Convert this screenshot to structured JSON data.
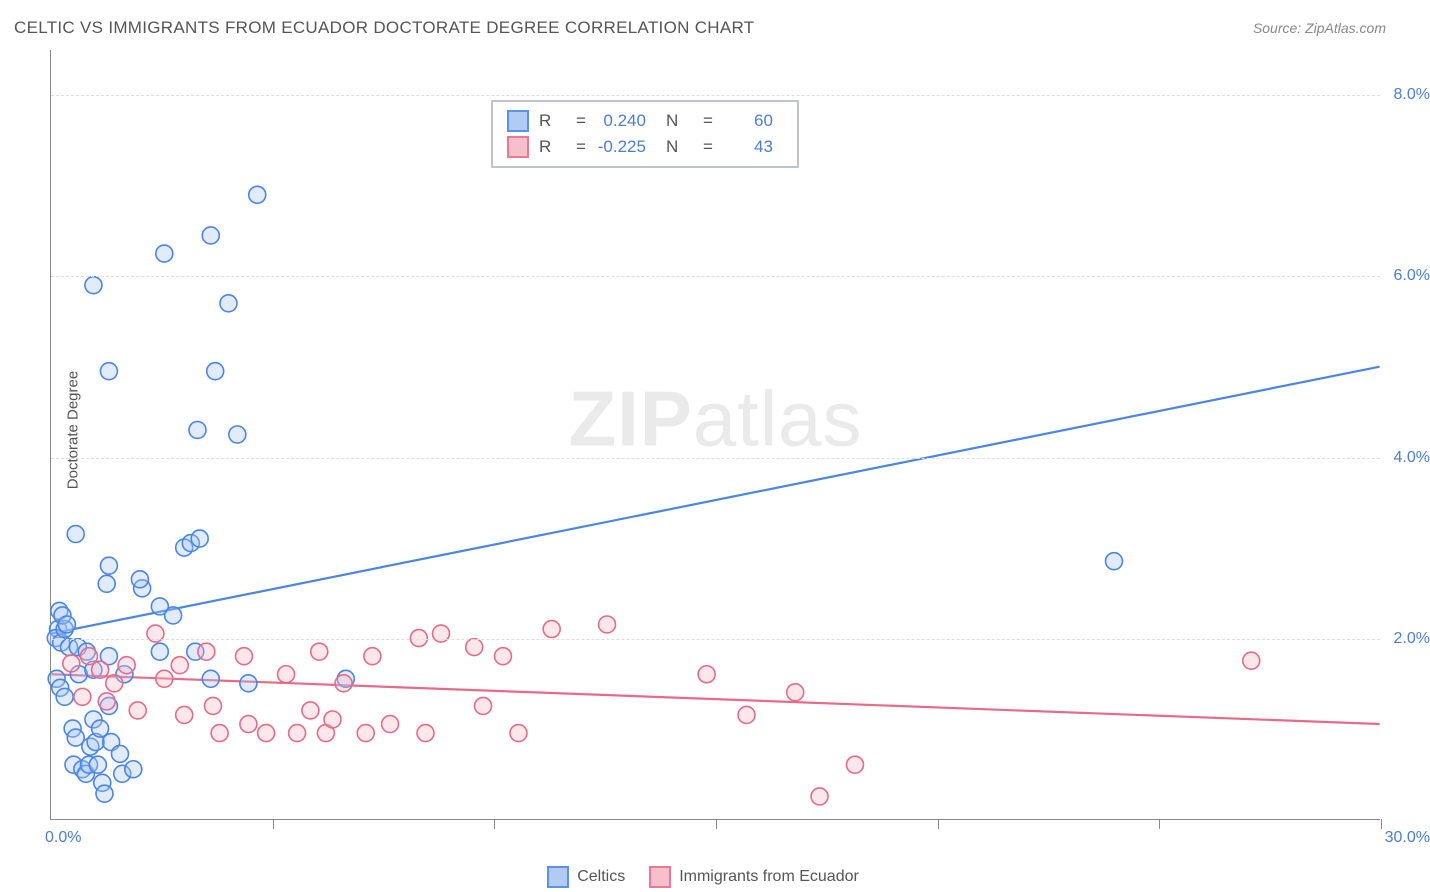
{
  "title": "CELTIC VS IMMIGRANTS FROM ECUADOR DOCTORATE DEGREE CORRELATION CHART",
  "source": "Source: ZipAtlas.com",
  "watermark_bold": "ZIP",
  "watermark_rest": "atlas",
  "ylabel": "Doctorate Degree",
  "chart": {
    "type": "scatter-with-regression",
    "xlim": [
      0,
      30
    ],
    "ylim": [
      0,
      8.5
    ],
    "xlim_label_lo": "0.0%",
    "xlim_label_hi": "30.0%",
    "xtick_positions": [
      5,
      10,
      15,
      20,
      25,
      30
    ],
    "ytick_positions": [
      2.0,
      4.0,
      6.0,
      8.0
    ],
    "ytick_labels": [
      "2.0%",
      "4.0%",
      "6.0%",
      "8.0%"
    ],
    "background_color": "#ffffff",
    "grid_color": "#dddddd",
    "grid_dash": "6,6",
    "axis_color": "#888888",
    "tick_label_color": "#4a7dd8",
    "marker_radius": 8.5,
    "marker_stroke_width": 1.6,
    "marker_fill_opacity": 0.35,
    "line_width": 2.2,
    "series": [
      {
        "id": "celtics",
        "label": "Celtics",
        "color_stroke": "#4a86e8",
        "color_fill": "#a9c6f5",
        "r_value": "0.240",
        "n_value": "60",
        "trend": {
          "x1": 0,
          "y1": 2.05,
          "x2": 30,
          "y2": 5.0
        },
        "points": [
          [
            0.15,
            2.1
          ],
          [
            0.1,
            2.0
          ],
          [
            0.18,
            2.3
          ],
          [
            0.22,
            1.95
          ],
          [
            0.3,
            2.1
          ],
          [
            0.25,
            2.25
          ],
          [
            0.35,
            2.15
          ],
          [
            0.4,
            1.9
          ],
          [
            0.12,
            1.55
          ],
          [
            0.2,
            1.45
          ],
          [
            0.3,
            1.35
          ],
          [
            0.48,
            1.0
          ],
          [
            0.55,
            0.9
          ],
          [
            0.5,
            0.6
          ],
          [
            0.7,
            0.55
          ],
          [
            0.78,
            0.5
          ],
          [
            0.85,
            0.6
          ],
          [
            0.88,
            0.8
          ],
          [
            1.0,
            0.85
          ],
          [
            1.05,
            0.6
          ],
          [
            1.15,
            0.4
          ],
          [
            1.2,
            0.28
          ],
          [
            0.95,
            1.1
          ],
          [
            1.1,
            1.0
          ],
          [
            1.35,
            0.85
          ],
          [
            1.55,
            0.72
          ],
          [
            1.6,
            0.5
          ],
          [
            1.85,
            0.55
          ],
          [
            0.62,
            1.6
          ],
          [
            1.3,
            1.25
          ],
          [
            0.6,
            1.9
          ],
          [
            0.8,
            1.85
          ],
          [
            0.95,
            1.65
          ],
          [
            1.3,
            1.8
          ],
          [
            1.65,
            1.6
          ],
          [
            1.25,
            2.6
          ],
          [
            2.05,
            2.55
          ],
          [
            2.45,
            2.35
          ],
          [
            2.75,
            2.25
          ],
          [
            2.45,
            1.85
          ],
          [
            3.25,
            1.85
          ],
          [
            3.6,
            1.55
          ],
          [
            4.45,
            1.5
          ],
          [
            6.65,
            1.55
          ],
          [
            3.0,
            3.0
          ],
          [
            3.15,
            3.05
          ],
          [
            3.35,
            3.1
          ],
          [
            3.3,
            4.3
          ],
          [
            3.7,
            4.95
          ],
          [
            4.2,
            4.25
          ],
          [
            0.55,
            3.15
          ],
          [
            1.3,
            2.8
          ],
          [
            2.0,
            2.65
          ],
          [
            0.95,
            5.9
          ],
          [
            1.3,
            4.95
          ],
          [
            2.55,
            6.25
          ],
          [
            4.0,
            5.7
          ],
          [
            3.6,
            6.45
          ],
          [
            4.65,
            6.9
          ],
          [
            24.0,
            2.85
          ]
        ]
      },
      {
        "id": "ecuador",
        "label": "Immigrants from Ecuador",
        "color_stroke": "#e86a8a",
        "color_fill": "#f5b9c7",
        "r_value": "-0.225",
        "n_value": "43",
        "trend": {
          "x1": 0,
          "y1": 1.6,
          "x2": 30,
          "y2": 1.05
        },
        "points": [
          [
            0.45,
            1.72
          ],
          [
            0.85,
            1.8
          ],
          [
            1.1,
            1.65
          ],
          [
            1.42,
            1.5
          ],
          [
            1.7,
            1.7
          ],
          [
            1.95,
            1.2
          ],
          [
            2.35,
            2.05
          ],
          [
            2.55,
            1.55
          ],
          [
            2.9,
            1.7
          ],
          [
            3.0,
            1.15
          ],
          [
            3.5,
            1.85
          ],
          [
            3.65,
            1.25
          ],
          [
            3.8,
            0.95
          ],
          [
            4.35,
            1.8
          ],
          [
            4.45,
            1.05
          ],
          [
            4.85,
            0.95
          ],
          [
            5.3,
            1.6
          ],
          [
            5.55,
            0.95
          ],
          [
            5.85,
            1.2
          ],
          [
            6.05,
            1.85
          ],
          [
            6.2,
            0.95
          ],
          [
            6.35,
            1.1
          ],
          [
            6.6,
            1.5
          ],
          [
            7.1,
            0.95
          ],
          [
            7.25,
            1.8
          ],
          [
            7.65,
            1.05
          ],
          [
            8.3,
            2.0
          ],
          [
            8.45,
            0.95
          ],
          [
            8.8,
            2.05
          ],
          [
            9.55,
            1.9
          ],
          [
            9.75,
            1.25
          ],
          [
            10.2,
            1.8
          ],
          [
            10.55,
            0.95
          ],
          [
            11.3,
            2.1
          ],
          [
            12.55,
            2.15
          ],
          [
            14.8,
            1.6
          ],
          [
            15.7,
            1.15
          ],
          [
            16.8,
            1.4
          ],
          [
            17.35,
            0.25
          ],
          [
            18.15,
            0.6
          ],
          [
            27.1,
            1.75
          ],
          [
            0.7,
            1.35
          ],
          [
            1.25,
            1.3
          ]
        ]
      }
    ]
  },
  "legend_top": {
    "r_label": "R",
    "n_label": "N",
    "eq": "="
  }
}
